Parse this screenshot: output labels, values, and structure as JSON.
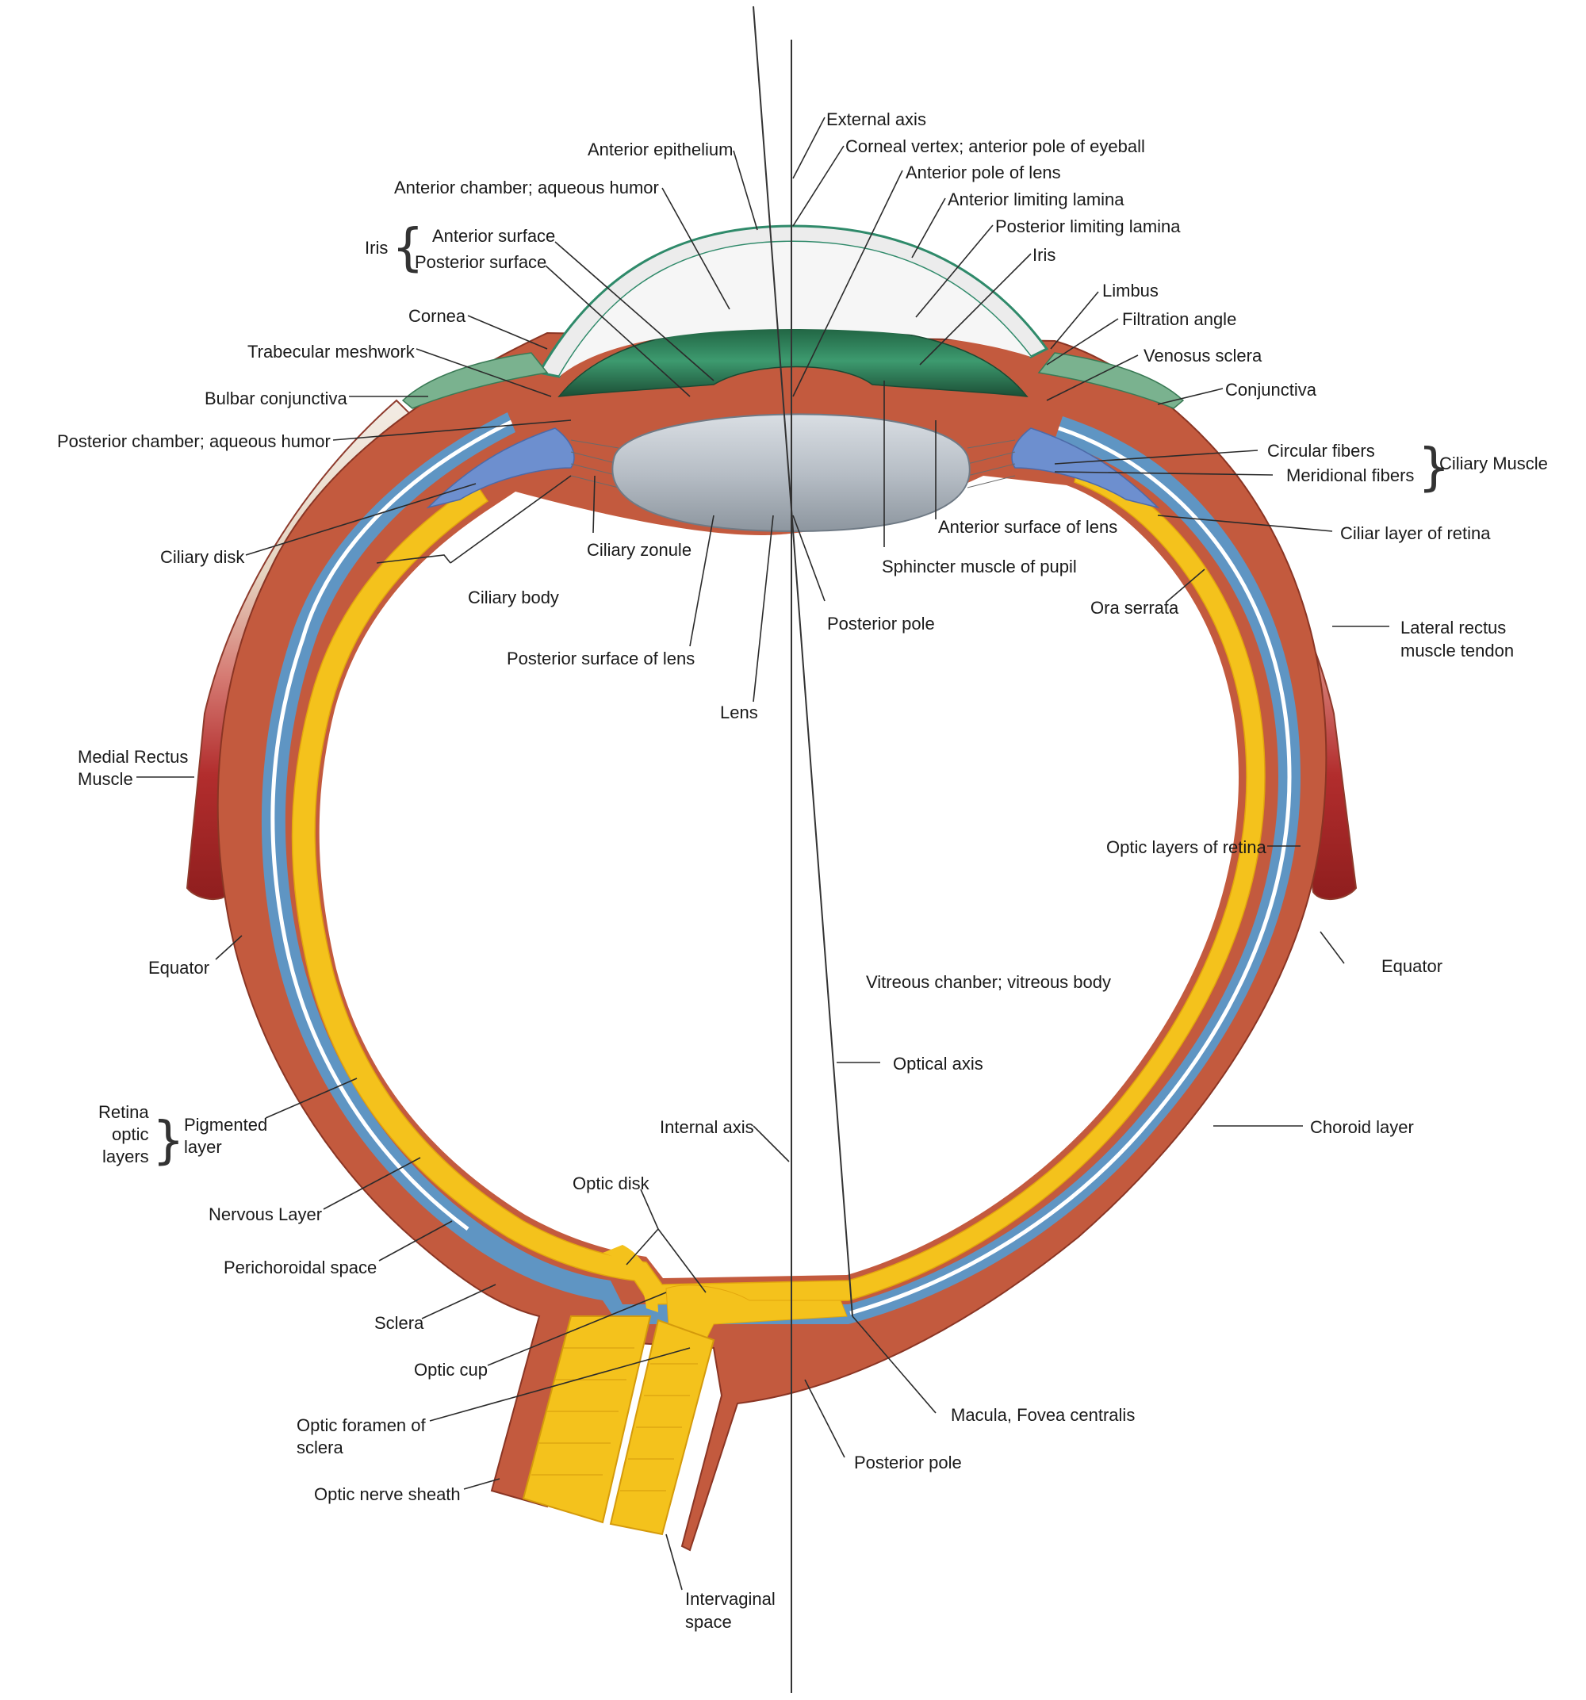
{
  "colors": {
    "sclera": "#c35a3e",
    "choroid": "#5f95c3",
    "retina": "#f4c21c",
    "iris": "#2f8a6a",
    "lens": "#a9b3bd",
    "cornea": "#ececec",
    "ciliary": "#6d8fcf",
    "muscle": "#b32e2e",
    "tendon": "#e7d8c8"
  },
  "labels": {
    "external_axis": "External axis",
    "corneal_vertex": "Corneal vertex; anterior pole of eyeball",
    "anterior_pole_of_lens": "Anterior pole of lens",
    "anterior_limiting_lamina": "Anterior limiting lamina",
    "posterior_limiting_lamina": "Posterior limiting lamina",
    "iris_right": "Iris",
    "limbus": "Limbus",
    "filtration_angle": "Filtration angle",
    "venosus_sclera": "Venosus sclera",
    "conjunctiva": "Conjunctiva",
    "circular_fibers": "Circular fibers",
    "meridional_fibers": "Meridional fibers",
    "ciliary_muscle": "Ciliary Muscle",
    "ciliar_layer_of_retina": "Ciliar layer of retina",
    "anterior_surface_of_lens": "Anterior surface of lens",
    "sphincter_muscle_of_pupil": "Sphincter muscle of pupil",
    "ora_serrata": "Ora serrata",
    "lateral_rectus_1": "Lateral rectus",
    "lateral_rectus_2": "muscle tendon",
    "optic_layers_of_retina": "Optic layers of retina",
    "equator_right": "Equator",
    "vitreous_chamber": "Vitreous chanber; vitreous body",
    "optical_axis": "Optical axis",
    "choroid_layer": "Choroid layer",
    "internal_axis": "Internal axis",
    "macula": "Macula, Fovea centralis",
    "posterior_pole_bottom": "Posterior pole",
    "intervaginal_1": "Intervaginal",
    "intervaginal_2": "space",
    "anterior_epithelium": "Anterior epithelium",
    "anterior_chamber": "Anterior chamber; aqueous humor",
    "iris_left": "Iris",
    "anterior_surface": "Anterior surface",
    "posterior_surface": "Posterior surface",
    "cornea": "Cornea",
    "trabecular_meshwork": "Trabecular meshwork",
    "bulbar_conjunctiva": "Bulbar conjunctiva",
    "posterior_chamber": "Posterior chamber; aqueous humor",
    "ciliary_disk": "Ciliary disk",
    "ciliary_zonule": "Ciliary zonule",
    "ciliary_body": "Ciliary body",
    "posterior_pole_top": "Posterior pole",
    "posterior_surface_of_lens": "Posterior surface of lens",
    "lens": "Lens",
    "medial_rectus_1": "Medial Rectus",
    "medial_rectus_2": "Muscle",
    "equator_left": "Equator",
    "retina_1": "Retina",
    "retina_2": "optic",
    "retina_3": "layers",
    "pigmented_1": "Pigmented",
    "pigmented_2": "layer",
    "nervous_layer": "Nervous Layer",
    "perichoroidal_space": "Perichoroidal space",
    "sclera": "Sclera",
    "optic_cup": "Optic cup",
    "optic_disk": "Optic disk",
    "optic_foramen_1": "Optic foramen of",
    "optic_foramen_2": "sclera",
    "optic_nerve_sheath": "Optic nerve sheath"
  }
}
